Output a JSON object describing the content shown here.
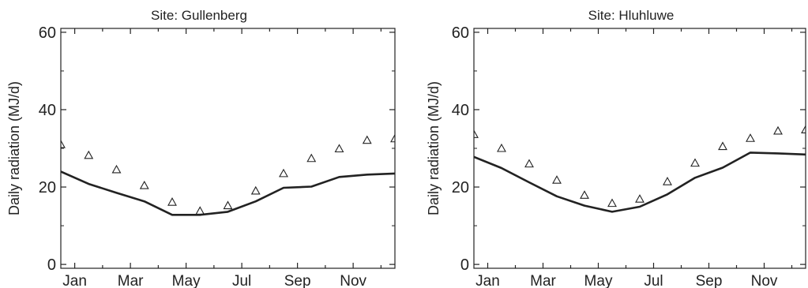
{
  "chart_data": [
    {
      "type": "line",
      "title": "Site: Gullenberg",
      "ylabel": "Daily radiation (MJ/d)",
      "xlabel": "",
      "x_tick_labels": [
        "Jan",
        "Mar",
        "May",
        "Jul",
        "Sep",
        "Nov"
      ],
      "x_tick_months": [
        1,
        3,
        5,
        7,
        9,
        11
      ],
      "y_ticks": [
        0,
        20,
        40,
        60
      ],
      "xlim": [
        0.5,
        12.5
      ],
      "ylim": [
        -1,
        61
      ],
      "grid": false,
      "line_color": "#222222",
      "series": [
        {
          "style": "line",
          "x": [
            0.5,
            1.5,
            2.5,
            3.5,
            4.5,
            5.5,
            6.5,
            7.5,
            8.5,
            9.5,
            10.5,
            11.5,
            12.5
          ],
          "values": [
            24,
            20.8,
            18.5,
            16.3,
            12.8,
            12.8,
            13.6,
            16.3,
            19.8,
            20.1,
            22.6,
            23.2,
            23.5
          ]
        },
        {
          "style": "markers",
          "marker": "triangle",
          "x": [
            0.5,
            1.5,
            2.5,
            3.5,
            4.5,
            5.5,
            6.5,
            7.5,
            8.5,
            9.5,
            10.5,
            11.5,
            12.5
          ],
          "values": [
            31,
            28.2,
            24.5,
            20.4,
            16.1,
            13.8,
            15.2,
            19,
            23.5,
            27.4,
            29.9,
            32.1,
            32.5
          ]
        }
      ]
    },
    {
      "type": "line",
      "title": "Site: Hluhluwe",
      "ylabel": "Daily radiation (MJ/d)",
      "xlabel": "",
      "x_tick_labels": [
        "Jan",
        "Mar",
        "May",
        "Jul",
        "Sep",
        "Nov"
      ],
      "x_tick_months": [
        1,
        3,
        5,
        7,
        9,
        11
      ],
      "y_ticks": [
        0,
        20,
        40,
        60
      ],
      "xlim": [
        0.5,
        12.5
      ],
      "ylim": [
        -1,
        61
      ],
      "grid": false,
      "line_color": "#222222",
      "series": [
        {
          "style": "line",
          "x": [
            0.5,
            1.5,
            2.5,
            3.5,
            4.5,
            5.5,
            6.5,
            7.5,
            8.5,
            9.5,
            10.5,
            11.5,
            12.5
          ],
          "values": [
            27.8,
            24.9,
            21.2,
            17.6,
            15.2,
            13.6,
            14.9,
            18.1,
            22.4,
            25,
            28.9,
            28.7,
            28.4
          ]
        },
        {
          "style": "markers",
          "marker": "triangle",
          "x": [
            0.5,
            1.5,
            2.5,
            3.5,
            4.5,
            5.5,
            6.5,
            7.5,
            8.5,
            9.5,
            10.5,
            11.5,
            12.5
          ],
          "values": [
            33.6,
            30,
            26,
            21.8,
            17.9,
            15.8,
            16.9,
            21.4,
            26.2,
            30.5,
            32.6,
            34.5,
            34.8
          ]
        }
      ]
    }
  ]
}
